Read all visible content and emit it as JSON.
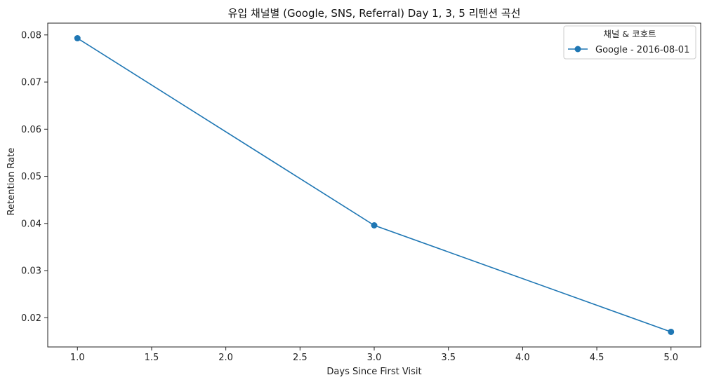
{
  "chart_data": {
    "type": "line",
    "title": "유입 채널별 (Google, SNS, Referral) Day 1, 3, 5 리텐션 곡선",
    "xlabel": "Days Since First Visit",
    "ylabel": "Retention Rate",
    "xlim": [
      0.8,
      5.2
    ],
    "ylim": [
      0.0138,
      0.0825
    ],
    "x_ticks": [
      "1.0",
      "1.5",
      "2.0",
      "2.5",
      "3.0",
      "3.5",
      "4.0",
      "4.5",
      "5.0"
    ],
    "y_ticks": [
      "0.02",
      "0.03",
      "0.04",
      "0.05",
      "0.06",
      "0.07",
      "0.08"
    ],
    "grid": false,
    "legend": {
      "title": "채널 & 코호트",
      "placement": "top-right"
    },
    "series": [
      {
        "name": "Google - 2016-08-01",
        "color": "#1f77b4",
        "marker": "circle",
        "x": [
          1,
          3,
          5
        ],
        "y": [
          0.0793,
          0.0396,
          0.017
        ]
      }
    ]
  }
}
